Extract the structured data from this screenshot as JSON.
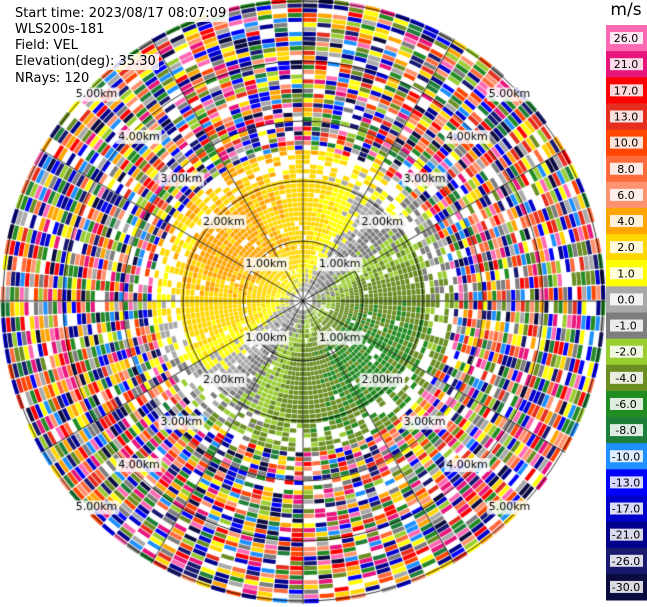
{
  "header": {
    "start_time": "Start time: 2023/08/17 08:07:09",
    "site": "WLS200s-181",
    "field": "Field: VEL",
    "elevation": "Elevation(deg): 35.30",
    "nrays": "NRays: 120"
  },
  "chart_data": {
    "type": "heatmap",
    "projection": "polar-ppi",
    "field": "VEL",
    "unit": "m/s",
    "range_rings_km": [
      1.0,
      2.0,
      3.0,
      4.0,
      5.0
    ],
    "ring_labels": [
      "1.00km",
      "2.00km",
      "3.00km",
      "4.00km",
      "5.00km"
    ],
    "nrays": 120,
    "colorbar": {
      "ticks": [
        "26.0",
        "21.0",
        "17.0",
        "13.0",
        "10.0",
        "8.0",
        "6.0",
        "4.0",
        "2.0",
        "1.0",
        "0.0",
        "-1.0",
        "-2.0",
        "-4.0",
        "-6.0",
        "-8.0",
        "-10.0",
        "-13.0",
        "-17.0",
        "-21.0",
        "-26.0",
        "-30.0"
      ],
      "colors": [
        "#ff69b4",
        "#e8157c",
        "#ff0000",
        "#e62e1e",
        "#ff4500",
        "#ff6a3c",
        "#ff9370",
        "#ffa500",
        "#ffd700",
        "#ffff00",
        "#a9a9a9",
        "#7d7d7d",
        "#9acd32",
        "#6b8e23",
        "#228b22",
        "#1e7f3a",
        "#1e90ff",
        "#0000ff",
        "#0000cd",
        "#00008b",
        "#191970",
        "#0b0b40"
      ]
    }
  }
}
